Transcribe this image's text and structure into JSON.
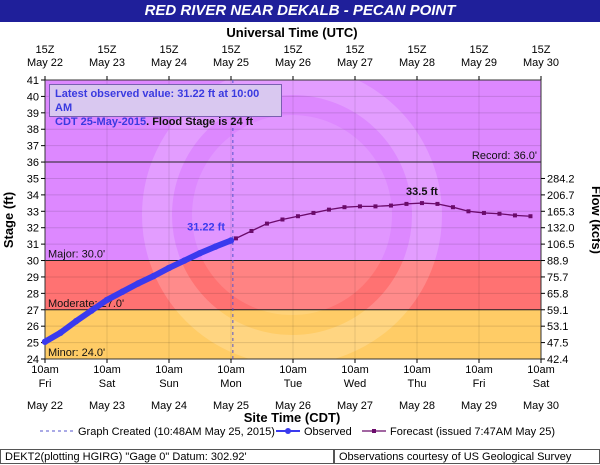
{
  "title": "RED RIVER NEAR DEKALB - PECAN POINT",
  "top_axis_label": "Universal Time (UTC)",
  "bottom_axis_label": "Site Time (CDT)",
  "y_left_label": "Stage (ft)",
  "y_right_label": "Flow (kcfs)",
  "info_box": {
    "line1": "Latest observed value: 31.22 ft at 10:00 AM",
    "line2_blue": "CDT 25-May-2015",
    "line2_black": ". Flood Stage is 24 ft"
  },
  "legend": {
    "graph_created": "Graph Created (10:48AM May 25, 2015)",
    "observed": "Observed",
    "forecast": "Forecast (issued 7:47AM May 25)"
  },
  "footer": {
    "left": "DEKT2(plotting HGIRG) \"Gage 0\" Datum: 302.92'",
    "right": "Observations courtesy of US Geological Survey"
  },
  "colors": {
    "title_bg": "#1f1f9a",
    "record_zone": "#dd88ff",
    "major_zone": "#ff7272",
    "moderate_zone": "#ff9d6e",
    "minor_zone": "#ffcc66",
    "action_zone": "#ffff6e",
    "observed": "#3a3aee",
    "forecast": "#6b0b6b"
  },
  "chart_data": {
    "type": "line",
    "title": "RED RIVER NEAR DEKALB - PECAN POINT",
    "xlabel": "Site Time (CDT)",
    "ylabel": "Stage (ft)",
    "y2label": "Flow (kcfs)",
    "ylim": [
      24,
      41
    ],
    "y_ticks": [
      24,
      25,
      26,
      27,
      28,
      29,
      30,
      31,
      32,
      33,
      34,
      35,
      36,
      37,
      38,
      39,
      40,
      41
    ],
    "x_range_days": [
      "May 22 10am",
      "May 30 10am"
    ],
    "bottom_ticks": [
      {
        "time": "10am",
        "day": "Fri",
        "date": "May 22"
      },
      {
        "time": "10am",
        "day": "Sat",
        "date": "May 23"
      },
      {
        "time": "10am",
        "day": "Sun",
        "date": "May 24"
      },
      {
        "time": "10am",
        "day": "Mon",
        "date": "May 25"
      },
      {
        "time": "10am",
        "day": "Tue",
        "date": "May 26"
      },
      {
        "time": "10am",
        "day": "Wed",
        "date": "May 27"
      },
      {
        "time": "10am",
        "day": "Thu",
        "date": "May 28"
      },
      {
        "time": "10am",
        "day": "Fri",
        "date": "May 29"
      },
      {
        "time": "10am",
        "day": "Sat",
        "date": "May 30"
      }
    ],
    "top_ticks": [
      {
        "time": "15Z",
        "date": "May 22"
      },
      {
        "time": "15Z",
        "date": "May 23"
      },
      {
        "time": "15Z",
        "date": "May 24"
      },
      {
        "time": "15Z",
        "date": "May 25"
      },
      {
        "time": "15Z",
        "date": "May 26"
      },
      {
        "time": "15Z",
        "date": "May 27"
      },
      {
        "time": "15Z",
        "date": "May 28"
      },
      {
        "time": "15Z",
        "date": "May 29"
      },
      {
        "time": "15Z",
        "date": "May 30"
      }
    ],
    "flow_ticks": [
      {
        "stage": 24,
        "flow": "42.4"
      },
      {
        "stage": 25,
        "flow": "47.5"
      },
      {
        "stage": 26,
        "flow": "53.1"
      },
      {
        "stage": 27,
        "flow": "59.1"
      },
      {
        "stage": 28,
        "flow": "65.8"
      },
      {
        "stage": 29,
        "flow": "75.7"
      },
      {
        "stage": 30,
        "flow": "88.9"
      },
      {
        "stage": 31,
        "flow": "106.5"
      },
      {
        "stage": 32,
        "flow": "132.0"
      },
      {
        "stage": 33,
        "flow": "165.3"
      },
      {
        "stage": 34,
        "flow": "206.7"
      },
      {
        "stage": 35,
        "flow": "284.2"
      }
    ],
    "flood_categories": [
      {
        "name": "Record",
        "label": "Record: 36.0'",
        "stage": 36.0
      },
      {
        "name": "Major",
        "label": "Major: 30.0'",
        "stage": 30.0
      },
      {
        "name": "Moderate",
        "label": "Moderate: 27.0'",
        "stage": 27.0
      },
      {
        "name": "Minor",
        "label": "Minor: 24.0'",
        "stage": 24.0
      }
    ],
    "graph_created_day": 3.03,
    "observed_label": "31.22 ft",
    "forecast_label": "33.5 ft",
    "series": [
      {
        "name": "Observed",
        "x_days": [
          0,
          0.25,
          0.5,
          0.75,
          1.0,
          1.25,
          1.5,
          1.75,
          2.0,
          2.25,
          2.5,
          2.75,
          3.0
        ],
        "values": [
          25.05,
          25.6,
          26.3,
          26.95,
          27.6,
          28.1,
          28.6,
          29.05,
          29.55,
          30.0,
          30.45,
          30.85,
          31.22
        ]
      },
      {
        "name": "Forecast",
        "x_days": [
          3.08,
          3.33,
          3.58,
          3.83,
          4.08,
          4.33,
          4.58,
          4.83,
          5.08,
          5.33,
          5.58,
          5.83,
          6.08,
          6.33,
          6.58,
          6.83,
          7.08,
          7.33,
          7.58,
          7.83
        ],
        "values": [
          31.35,
          31.8,
          32.25,
          32.5,
          32.7,
          32.9,
          33.1,
          33.25,
          33.3,
          33.3,
          33.35,
          33.45,
          33.5,
          33.45,
          33.25,
          33.0,
          32.9,
          32.85,
          32.75,
          32.7
        ]
      }
    ]
  }
}
